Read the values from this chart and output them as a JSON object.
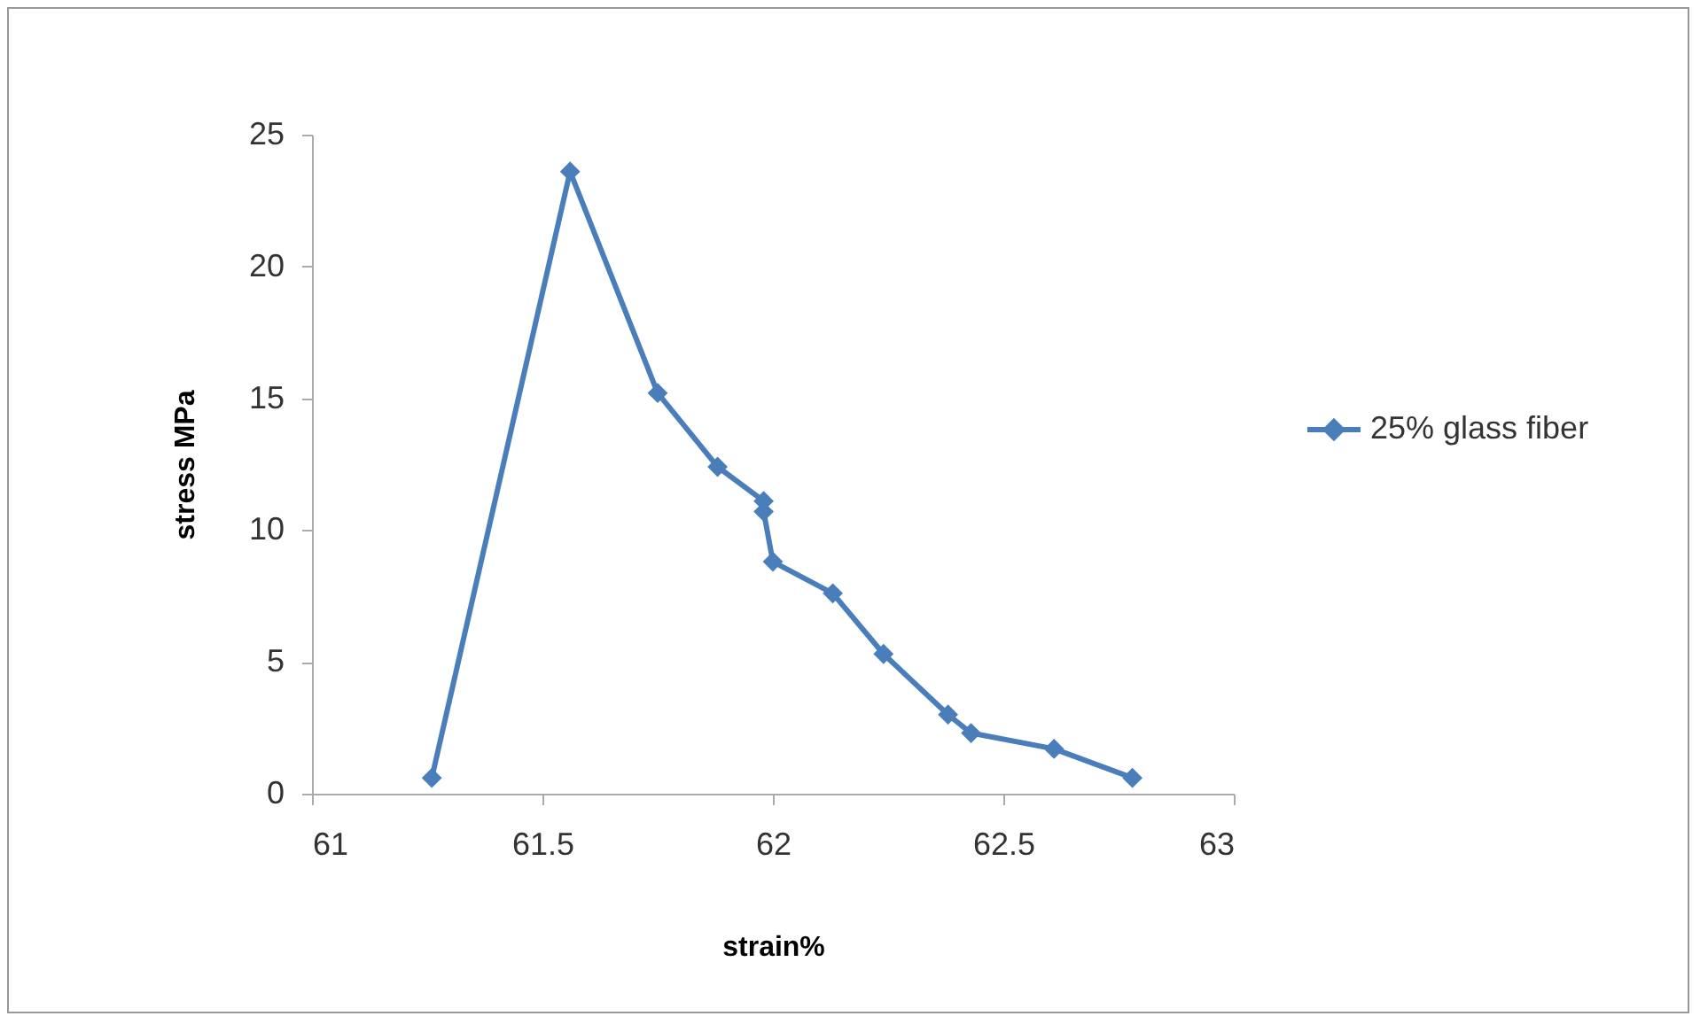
{
  "chart_data": {
    "type": "line",
    "xlabel": "strain%",
    "ylabel": "stress MPa",
    "xlim": [
      61,
      63
    ],
    "xticks": [
      61,
      61.5,
      62,
      62.5,
      63
    ],
    "ylim": [
      0,
      25
    ],
    "yticks": [
      0,
      5,
      10,
      15,
      20,
      25
    ],
    "grid": false,
    "legend": "right",
    "marker": "diamond",
    "line_style": "solid",
    "series": [
      {
        "name": "25% glass fiber",
        "color": "#4a7ebb",
        "x": [
          61.26,
          61.56,
          61.75,
          61.88,
          61.98,
          61.98,
          62.0,
          62.13,
          62.24,
          62.38,
          62.43,
          62.61,
          62.78
        ],
        "values": [
          0.6,
          23.6,
          15.2,
          12.4,
          11.1,
          10.7,
          8.8,
          7.6,
          5.3,
          3.0,
          2.3,
          1.7,
          0.6
        ]
      }
    ]
  }
}
